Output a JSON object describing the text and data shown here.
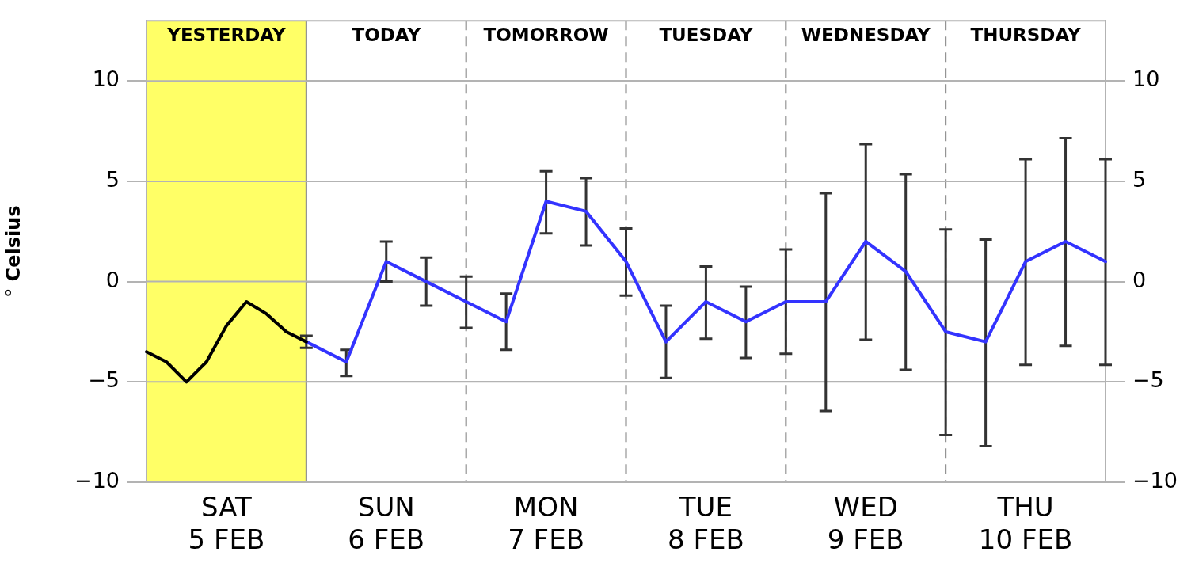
{
  "chart_data": {
    "type": "line",
    "ylabel": "° Celsius",
    "categories": [
      null,
      null,
      null,
      null,
      "SAT\n5 FEB",
      null,
      null,
      null,
      null,
      null,
      null,
      null,
      "SUN\n6 FEB",
      null,
      null,
      null,
      null,
      null,
      null,
      null,
      "MON\n7 FEB",
      null,
      null,
      null,
      null,
      null,
      null,
      null,
      "TUE\n8 FEB",
      null,
      null,
      null,
      null,
      null,
      null,
      null,
      "WED\n9 FEB",
      null,
      null,
      null,
      null,
      null,
      null,
      null,
      "THU\n10 FEB",
      null,
      null,
      null,
      null
    ],
    "annotations": [
      "YESTERDAY",
      "TODAY",
      "TOMORROW",
      "TUESDAY",
      "WEDNESDAY",
      "THURSDAY"
    ],
    "ylim": [
      -10,
      13
    ],
    "yticks": [
      {
        "value": -10,
        "label": "−10"
      },
      {
        "value": -5,
        "label": "−5"
      },
      0,
      5,
      10
    ],
    "y2lim": [
      -10,
      13
    ],
    "y2ticks": [
      {
        "value": -10,
        "label": "−10"
      },
      {
        "value": -5,
        "label": "−5"
      },
      0,
      5,
      10
    ],
    "grid": true,
    "legend": false,
    "marker": "none",
    "line_style": "solid",
    "series": [
      {
        "color": "#000000",
        "values": [
          -3.5,
          -4,
          -5,
          -4,
          -2.2,
          -1,
          -1.6,
          -2.5,
          -3,
          null,
          null,
          null,
          null,
          null,
          null,
          null,
          null,
          null,
          null,
          null,
          null,
          null,
          null,
          null,
          null,
          null,
          null,
          null,
          null,
          null,
          null,
          null,
          null,
          null,
          null,
          null,
          null,
          null,
          null,
          null,
          null,
          null,
          null,
          null,
          null,
          null,
          null,
          null,
          null
        ]
      },
      {
        "color": "#3333ff",
        "values": [
          null,
          null,
          null,
          null,
          null,
          null,
          null,
          null,
          -3,
          null,
          -4,
          null,
          1,
          null,
          0,
          null,
          -1,
          null,
          -2,
          null,
          4,
          null,
          3.5,
          null,
          1,
          null,
          -3,
          null,
          -1,
          null,
          -2,
          null,
          -1,
          null,
          -1,
          null,
          2,
          null,
          0.5,
          null,
          -2.5,
          null,
          -3,
          null,
          1,
          null,
          2,
          null,
          1
        ],
        "errors": [
          null,
          null,
          null,
          null,
          null,
          null,
          null,
          null,
          [
            -3.3,
            -2.7
          ],
          null,
          [
            -4.7,
            -3.4
          ],
          null,
          [
            0,
            2
          ],
          null,
          [
            -1.2,
            1.2
          ],
          null,
          [
            -2.3,
            0.25
          ],
          null,
          [
            -3.4,
            -0.6
          ],
          null,
          [
            2.4,
            5.5
          ],
          null,
          [
            1.8,
            5.15
          ],
          null,
          [
            -0.7,
            2.65
          ],
          null,
          [
            -4.8,
            -1.2
          ],
          null,
          [
            -2.85,
            0.75
          ],
          null,
          [
            -3.8,
            -0.25
          ],
          null,
          [
            -3.6,
            1.6
          ],
          null,
          [
            -6.45,
            4.4
          ],
          null,
          [
            -2.9,
            6.85
          ],
          null,
          [
            -4.4,
            5.35
          ],
          null,
          [
            -7.65,
            2.6
          ],
          null,
          [
            -8.2,
            2.1
          ],
          null,
          [
            -4.15,
            6.1
          ],
          null,
          [
            -3.2,
            7.15
          ],
          null,
          [
            -4.15,
            6.1
          ]
        ]
      }
    ]
  }
}
